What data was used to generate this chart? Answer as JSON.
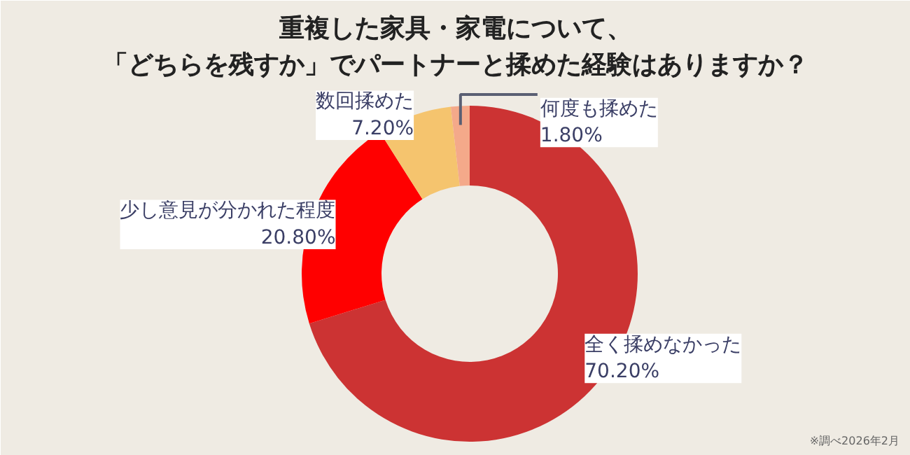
{
  "chart_data": {
    "type": "donut",
    "title": "重複した家具・家電について、",
    "subtitle": "「どちらを残すか」でパートナーと揉めた経験はありますか？",
    "categories": [
      "全く揉めなかった",
      "少し意見が分かれた程度",
      "数回揉めた",
      "何度も揉めた"
    ],
    "values": [
      70.2,
      20.8,
      7.2,
      1.8
    ],
    "colors": [
      "#cc3333",
      "#ff0000",
      "#f5c46e",
      "#f4a98a"
    ],
    "value_labels": [
      "70.20%",
      "20.80%",
      "7.20%",
      "1.80%"
    ],
    "annotations": [
      "※調べ2026年2月"
    ]
  }
}
